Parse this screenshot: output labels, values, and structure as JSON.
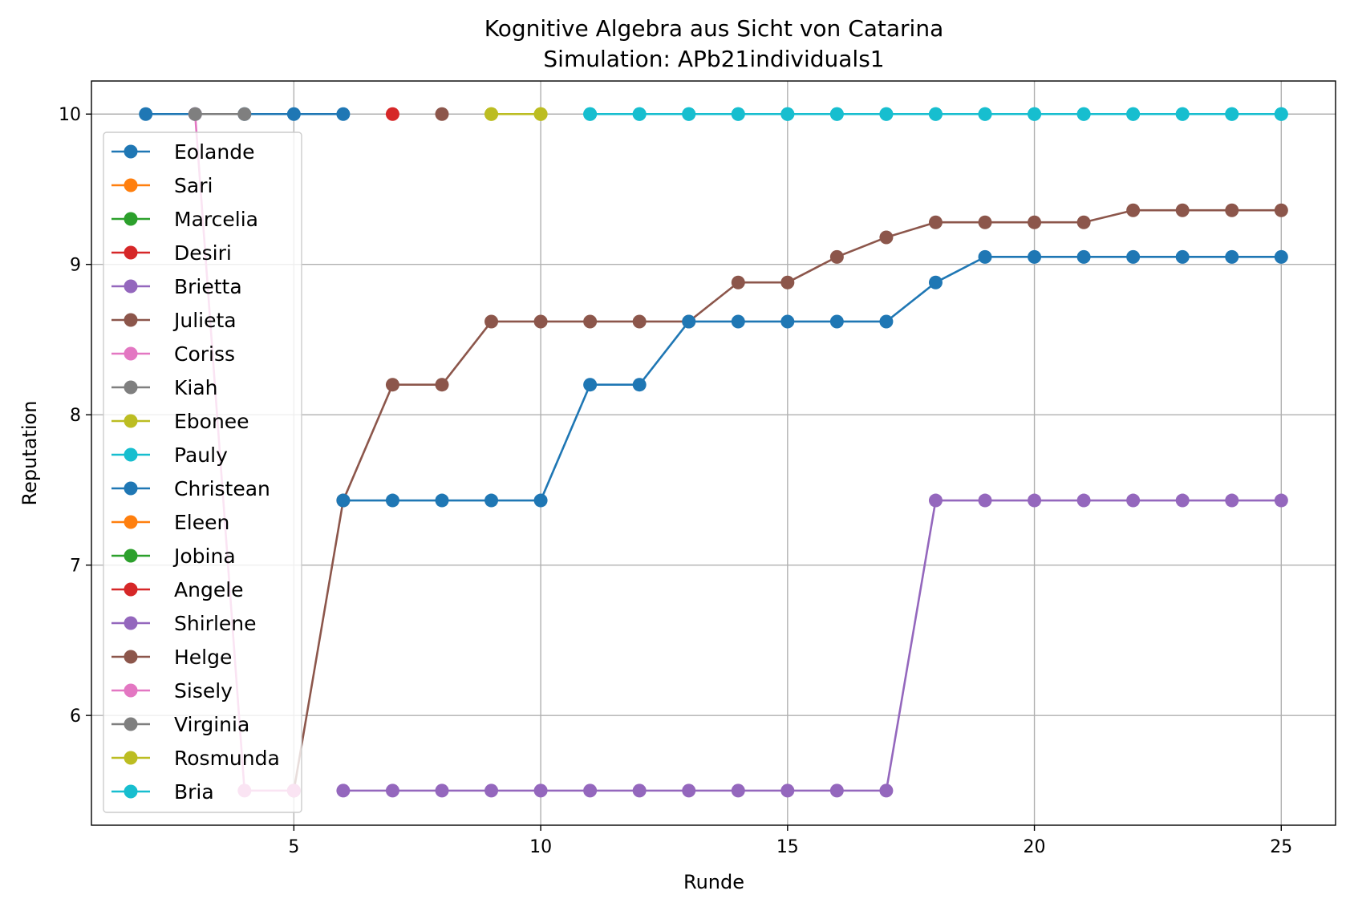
{
  "chart_data": {
    "type": "line",
    "title": "Kognitive Algebra aus Sicht von Catarina",
    "subtitle": "Simulation: APb21individuals1",
    "xlabel": "Runde",
    "ylabel": "Reputation",
    "xlim": [
      0.9,
      26.1
    ],
    "ylim": [
      5.27,
      10.22
    ],
    "xticks": [
      5,
      10,
      15,
      20,
      25
    ],
    "yticks": [
      6,
      7,
      8,
      9,
      10
    ],
    "grid": true,
    "legend_position": "left",
    "series": [
      {
        "name": "Eolande",
        "color": "#1f77b4",
        "x": [
          2,
          3,
          4,
          5,
          6
        ],
        "values": [
          10,
          10,
          10,
          10,
          10
        ]
      },
      {
        "name": "Sari",
        "color": "#ff7f0e",
        "x": [],
        "values": []
      },
      {
        "name": "Marcelia",
        "color": "#2ca02c",
        "x": [],
        "values": []
      },
      {
        "name": "Desiri",
        "color": "#d62728",
        "x": [
          7
        ],
        "values": [
          10
        ]
      },
      {
        "name": "Brietta",
        "color": "#9467bd",
        "x": [],
        "values": []
      },
      {
        "name": "Julieta",
        "color": "#8c564b",
        "x": [
          5,
          6,
          7,
          8,
          9,
          10,
          11,
          12,
          13,
          14,
          15,
          16,
          17,
          18,
          19,
          20,
          21,
          22,
          23,
          24,
          25
        ],
        "values": [
          5.5,
          7.43,
          8.2,
          8.2,
          8.62,
          8.62,
          8.62,
          8.62,
          8.62,
          8.88,
          8.88,
          9.05,
          9.18,
          9.28,
          9.28,
          9.28,
          9.28,
          9.36,
          9.36,
          9.36,
          9.36
        ]
      },
      {
        "name": "Coriss",
        "color": "#e377c2",
        "x": [
          3,
          4,
          5
        ],
        "values": [
          10,
          5.5,
          5.5
        ]
      },
      {
        "name": "Kiah",
        "color": "#7f7f7f",
        "x": [
          3,
          4
        ],
        "values": [
          10,
          10
        ]
      },
      {
        "name": "Ebonee",
        "color": "#bcbd22",
        "x": [
          9,
          10
        ],
        "values": [
          10,
          10
        ]
      },
      {
        "name": "Pauly",
        "color": "#17becf",
        "x": [
          11,
          12,
          13,
          14,
          15,
          16,
          17,
          18,
          19,
          20,
          21,
          22,
          23,
          24,
          25
        ],
        "values": [
          10,
          10,
          10,
          10,
          10,
          10,
          10,
          10,
          10,
          10,
          10,
          10,
          10,
          10,
          10
        ]
      },
      {
        "name": "Christean",
        "color": "#1f77b4",
        "x": [
          6,
          7,
          8,
          9,
          10,
          11,
          12,
          13,
          14,
          15,
          16,
          17,
          18,
          19,
          20,
          21,
          22,
          23,
          24,
          25
        ],
        "values": [
          7.43,
          7.43,
          7.43,
          7.43,
          7.43,
          8.2,
          8.2,
          8.62,
          8.62,
          8.62,
          8.62,
          8.62,
          8.88,
          9.05,
          9.05,
          9.05,
          9.05,
          9.05,
          9.05,
          9.05
        ]
      },
      {
        "name": "Eleen",
        "color": "#ff7f0e",
        "x": [],
        "values": []
      },
      {
        "name": "Jobina",
        "color": "#2ca02c",
        "x": [],
        "values": []
      },
      {
        "name": "Angele",
        "color": "#d62728",
        "x": [],
        "values": []
      },
      {
        "name": "Shirlene",
        "color": "#9467bd",
        "x": [
          6,
          7,
          8,
          9,
          10,
          11,
          12,
          13,
          14,
          15,
          16,
          17,
          18,
          19,
          20,
          21,
          22,
          23,
          24,
          25
        ],
        "values": [
          5.5,
          5.5,
          5.5,
          5.5,
          5.5,
          5.5,
          5.5,
          5.5,
          5.5,
          5.5,
          5.5,
          5.5,
          7.43,
          7.43,
          7.43,
          7.43,
          7.43,
          7.43,
          7.43,
          7.43
        ]
      },
      {
        "name": "Helge",
        "color": "#8c564b",
        "x": [
          8
        ],
        "values": [
          10
        ]
      },
      {
        "name": "Sisely",
        "color": "#e377c2",
        "x": [],
        "values": []
      },
      {
        "name": "Virginia",
        "color": "#7f7f7f",
        "x": [],
        "values": []
      },
      {
        "name": "Rosmunda",
        "color": "#bcbd22",
        "x": [
          9,
          10
        ],
        "values": [
          10,
          10
        ]
      },
      {
        "name": "Bria",
        "color": "#17becf",
        "x": [
          11,
          12,
          13,
          14,
          15,
          16,
          17,
          18,
          19,
          20,
          21,
          22,
          23,
          24,
          25
        ],
        "values": [
          10,
          10,
          10,
          10,
          10,
          10,
          10,
          10,
          10,
          10,
          10,
          10,
          10,
          10,
          10
        ]
      }
    ]
  }
}
